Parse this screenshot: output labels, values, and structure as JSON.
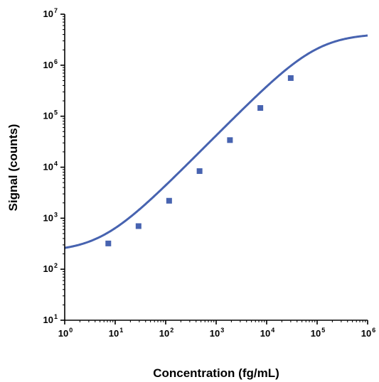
{
  "chart_data": {
    "type": "scatter",
    "title": "",
    "xlabel": "Concentration (fg/mL)",
    "ylabel": "Signal (counts)",
    "xscale": "log",
    "yscale": "log",
    "xlim": [
      1,
      1000000
    ],
    "ylim": [
      10,
      10000000
    ],
    "x_ticks": [
      {
        "value": 1,
        "base": "10",
        "exp": "0"
      },
      {
        "value": 10,
        "base": "10",
        "exp": "1"
      },
      {
        "value": 100,
        "base": "10",
        "exp": "2"
      },
      {
        "value": 1000,
        "base": "10",
        "exp": "3"
      },
      {
        "value": 10000,
        "base": "10",
        "exp": "4"
      },
      {
        "value": 100000,
        "base": "10",
        "exp": "5"
      },
      {
        "value": 1000000,
        "base": "10",
        "exp": "6"
      }
    ],
    "y_ticks": [
      {
        "value": 10,
        "base": "10",
        "exp": "1"
      },
      {
        "value": 100,
        "base": "10",
        "exp": "2"
      },
      {
        "value": 1000,
        "base": "10",
        "exp": "3"
      },
      {
        "value": 10000,
        "base": "10",
        "exp": "4"
      },
      {
        "value": 100000,
        "base": "10",
        "exp": "5"
      },
      {
        "value": 1000000,
        "base": "10",
        "exp": "6"
      },
      {
        "value": 10000000,
        "base": "10",
        "exp": "7"
      }
    ],
    "grid": false,
    "legend": "none",
    "color": "#4763b0",
    "series": [
      {
        "points": [
          {
            "x": 7.3,
            "y": 320
          },
          {
            "x": 29,
            "y": 700
          },
          {
            "x": 117,
            "y": 2200
          },
          {
            "x": 469,
            "y": 8400
          },
          {
            "x": 1875,
            "y": 34000
          },
          {
            "x": 7500,
            "y": 145000
          },
          {
            "x": 30000,
            "y": 560000
          }
        ],
        "fit": {
          "model": "4PL",
          "bottom": 220,
          "top": 4200000,
          "ec50": 100000,
          "hill": 1.0
        }
      }
    ]
  }
}
